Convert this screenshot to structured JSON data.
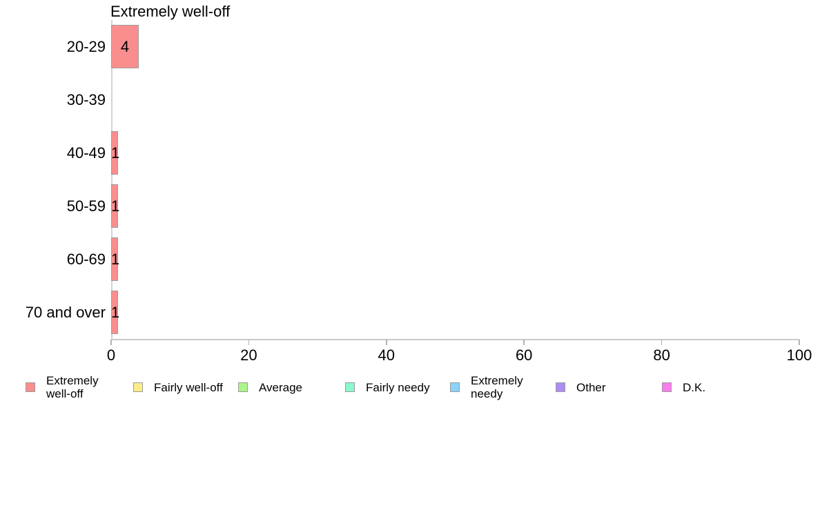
{
  "chart_data": {
    "type": "bar",
    "orientation": "horizontal",
    "title": "Extremely well-off",
    "series_name": "Extremely well-off",
    "categories": [
      "20-29",
      "30-39",
      "40-49",
      "50-59",
      "60-69",
      "70 and over"
    ],
    "values": [
      4,
      0,
      1,
      1,
      1,
      1
    ],
    "value_labels": [
      "4",
      "",
      "1",
      "1",
      "1",
      "1"
    ],
    "xlabel": "",
    "ylabel": "",
    "xlim": [
      0,
      100
    ],
    "x_ticks": [
      "0",
      "20",
      "40",
      "60",
      "80",
      "100"
    ],
    "grid": "off",
    "bar_color": "#fa8e8e",
    "bar_border_color": "#9b9b9b",
    "axis_line_color": "#c9c9c9",
    "zero_line_color": "#d4d4d4",
    "legend_position": "bottom",
    "legend": [
      {
        "label": "Extremely well-off",
        "lines": [
          "Extremely",
          "well-off"
        ],
        "color": "#fa8e8e"
      },
      {
        "label": "Fairly well-off",
        "color": "#fbec8b"
      },
      {
        "label": "Average",
        "color": "#abf58b"
      },
      {
        "label": "Fairly needy",
        "color": "#8df7ce"
      },
      {
        "label": "Extremely needy",
        "lines": [
          "Extremely",
          "needy"
        ],
        "color": "#8dd2f7"
      },
      {
        "label": "Other",
        "color": "#ae8df5"
      },
      {
        "label": "D.K.",
        "color": "#f77eeb"
      }
    ]
  }
}
